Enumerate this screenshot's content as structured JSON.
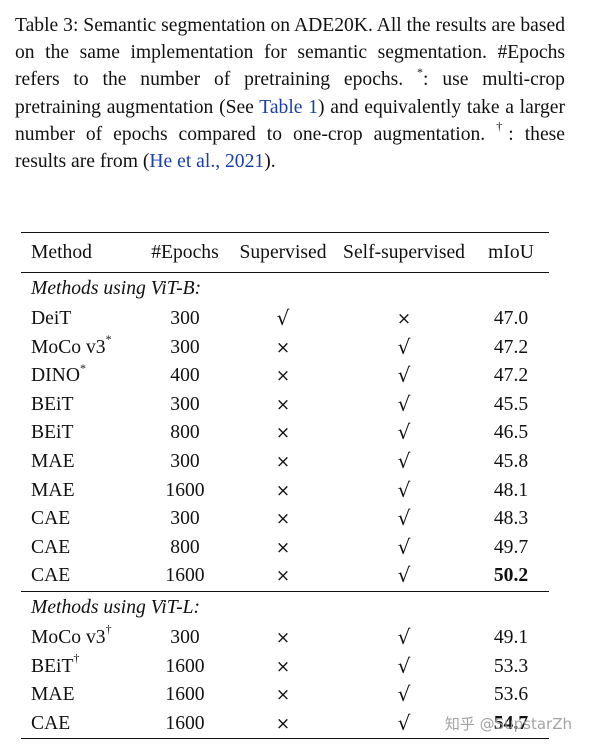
{
  "caption": {
    "label": "Table 3:",
    "text_1": " Semantic segmentation on ADE20K. All the results are based on the same implementation for semantic segmentation. #Epochs refers to the number of pretraining epochs. ",
    "star": "*",
    "text_2": ": use multi-crop pretraining augmentation (See ",
    "table_ref": "Table 1",
    "text_3": ") and equivalently take a larger number of epochs compared to one-crop augmentation. ",
    "dagger": "†",
    "text_4": ": these results are from (",
    "citation": "He et al., 2021",
    "text_5": ")."
  },
  "table": {
    "headers": [
      "Method",
      "#Epochs",
      "Supervised",
      "Self-supervised",
      "mIoU"
    ],
    "symbols": {
      "check": "√",
      "cross": "×"
    },
    "groups": [
      {
        "title": "Methods using ViT-B:",
        "rows": [
          {
            "method": "DeiT",
            "sup_mark": "",
            "epochs": "300",
            "supervised": "check",
            "self_supervised": "cross",
            "miou": "47.0",
            "bold": false
          },
          {
            "method": "MoCo v3",
            "sup_mark": "*",
            "epochs": "300",
            "supervised": "cross",
            "self_supervised": "check",
            "miou": "47.2",
            "bold": false
          },
          {
            "method": "DINO",
            "sup_mark": "*",
            "epochs": "400",
            "supervised": "cross",
            "self_supervised": "check",
            "miou": "47.2",
            "bold": false
          },
          {
            "method": "BEiT",
            "sup_mark": "",
            "epochs": "300",
            "supervised": "cross",
            "self_supervised": "check",
            "miou": "45.5",
            "bold": false
          },
          {
            "method": "BEiT",
            "sup_mark": "",
            "epochs": "800",
            "supervised": "cross",
            "self_supervised": "check",
            "miou": "46.5",
            "bold": false
          },
          {
            "method": "MAE",
            "sup_mark": "",
            "epochs": "300",
            "supervised": "cross",
            "self_supervised": "check",
            "miou": "45.8",
            "bold": false
          },
          {
            "method": "MAE",
            "sup_mark": "",
            "epochs": "1600",
            "supervised": "cross",
            "self_supervised": "check",
            "miou": "48.1",
            "bold": false
          },
          {
            "method": "CAE",
            "sup_mark": "",
            "epochs": "300",
            "supervised": "cross",
            "self_supervised": "check",
            "miou": "48.3",
            "bold": false
          },
          {
            "method": "CAE",
            "sup_mark": "",
            "epochs": "800",
            "supervised": "cross",
            "self_supervised": "check",
            "miou": "49.7",
            "bold": false
          },
          {
            "method": "CAE",
            "sup_mark": "",
            "epochs": "1600",
            "supervised": "cross",
            "self_supervised": "check",
            "miou": "50.2",
            "bold": true
          }
        ]
      },
      {
        "title": "Methods using ViT-L:",
        "rows": [
          {
            "method": "MoCo v3",
            "sup_mark": "†",
            "epochs": "300",
            "supervised": "cross",
            "self_supervised": "check",
            "miou": "49.1",
            "bold": false
          },
          {
            "method": "BEiT",
            "sup_mark": "†",
            "epochs": "1600",
            "supervised": "cross",
            "self_supervised": "check",
            "miou": "53.3",
            "bold": false
          },
          {
            "method": "MAE",
            "sup_mark": "",
            "epochs": "1600",
            "supervised": "cross",
            "self_supervised": "check",
            "miou": "53.6",
            "bold": false
          },
          {
            "method": "CAE",
            "sup_mark": "",
            "epochs": "1600",
            "supervised": "cross",
            "self_supervised": "check",
            "miou": "54.7",
            "bold": true
          }
        ]
      }
    ]
  },
  "watermark": "知乎 @SupstarZh",
  "colors": {
    "link": "#1a3fa8",
    "text": "#111111",
    "watermark": "#9a9a9a"
  }
}
